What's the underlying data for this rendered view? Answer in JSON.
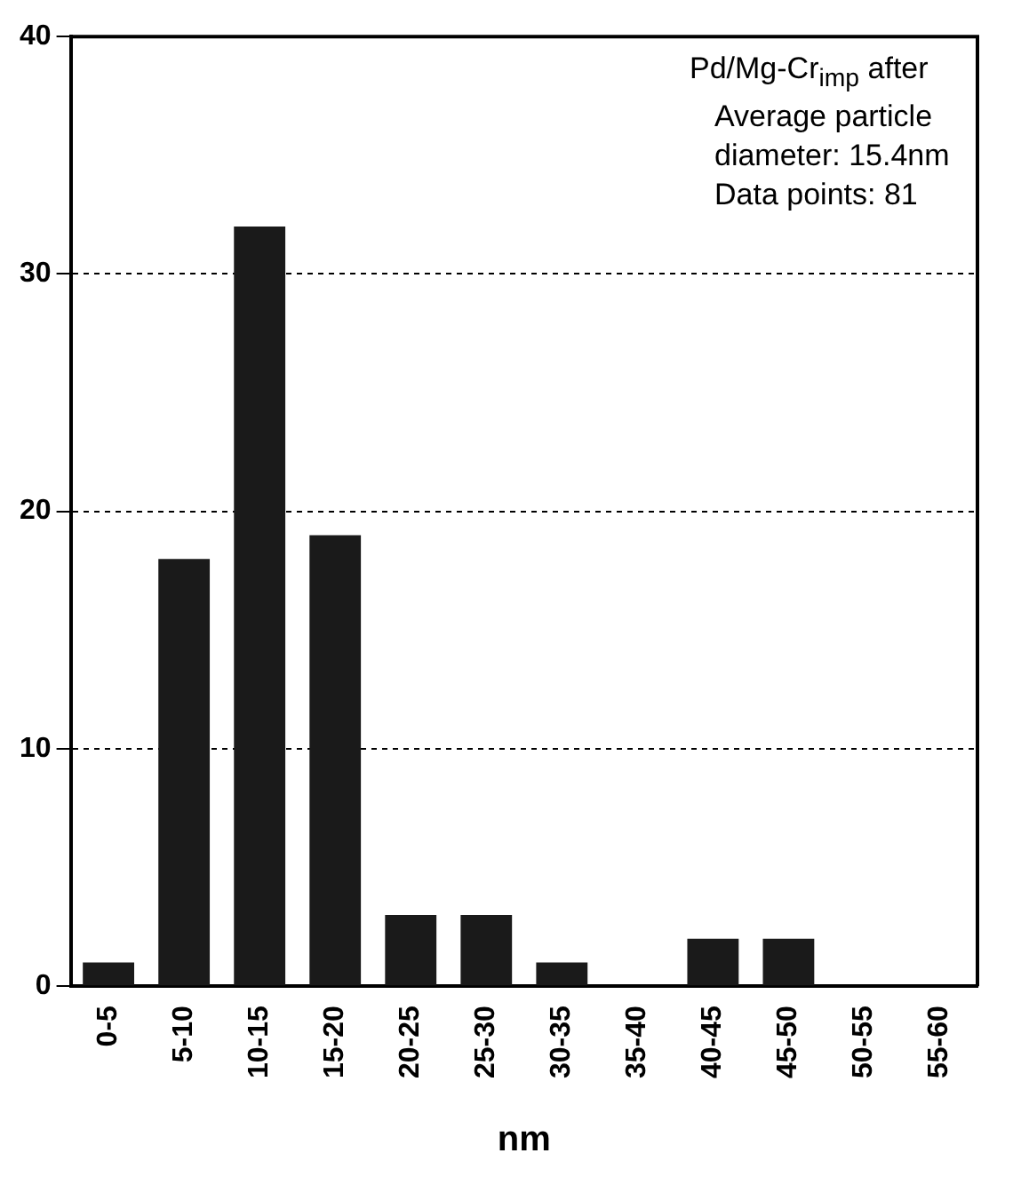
{
  "chart_data": {
    "type": "bar",
    "xlabel": "nm",
    "categories": [
      "0-5",
      "5-10",
      "10-15",
      "15-20",
      "20-25",
      "25-30",
      "30-35",
      "35-40",
      "40-45",
      "45-50",
      "50-55",
      "55-60"
    ],
    "values": [
      1,
      18,
      32,
      19,
      3,
      3,
      1,
      0,
      2,
      2,
      0,
      0
    ],
    "color": "#1a1a1a",
    "ylim": [
      0,
      40
    ],
    "yticks": [
      0,
      10,
      20,
      30,
      40
    ],
    "grid": "y",
    "annotations": [
      "Pd/Mg-Cr$_{imp}$ after",
      "Average particle diameter: 15.4nm",
      "Data points: 81"
    ]
  }
}
